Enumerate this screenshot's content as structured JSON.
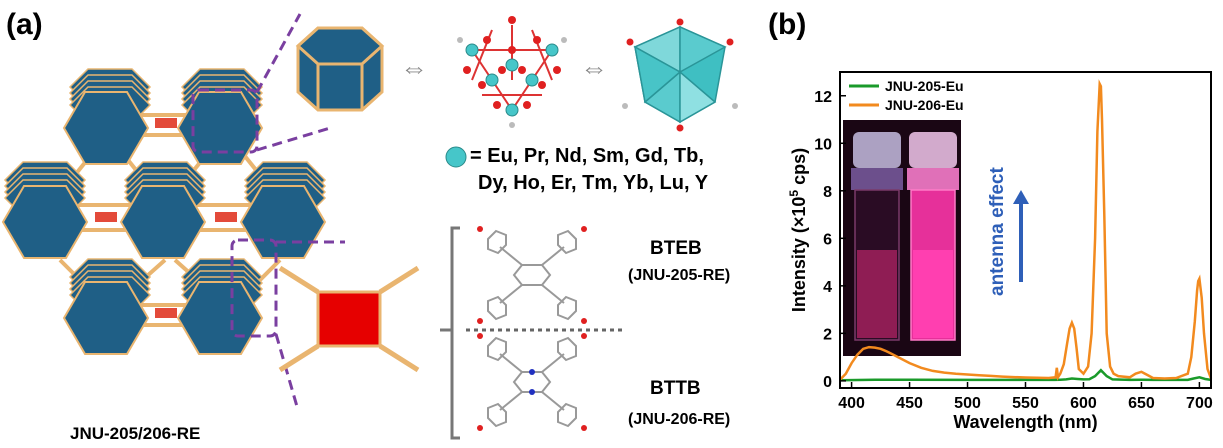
{
  "panel_a": {
    "label": "(a)",
    "framework_caption": "JNU-205/206-RE",
    "exchange_arrow": "⇔",
    "ion_legend_line1": "= Eu, Pr, Nd, Sm, Gd, Tb,",
    "ion_legend_line2": "Dy, Ho,  Er, Tm, Yb, Lu, Y",
    "linkers": [
      {
        "name": "BTEB",
        "material": "(JNU-205-RE)"
      },
      {
        "name": "BTTB",
        "material": "(JNU-206-RE)"
      }
    ],
    "colors": {
      "hexagon": "#1f5f86",
      "strut": "#e9b570",
      "square": "#e60000",
      "ion": "#46c6c9",
      "dashed": "#7a3fa0"
    }
  },
  "panel_b": {
    "label": "(b)",
    "annotation": "antenna effect"
  },
  "chart_data": {
    "type": "line",
    "xlabel": "Wavelength (nm)",
    "ylabel_main": "Intensity (×10",
    "ylabel_sup": "5",
    "ylabel_tail": " cps)",
    "xlim": [
      390,
      710
    ],
    "ylim": [
      -0.3,
      13
    ],
    "xticks": [
      400,
      450,
      500,
      550,
      600,
      650,
      700
    ],
    "yticks": [
      0,
      2,
      4,
      6,
      8,
      10,
      12
    ],
    "legend_placement": "top-left",
    "series": [
      {
        "name": "JNU-205-Eu",
        "color": "#1a9a2a",
        "x": [
          390,
          420,
          450,
          500,
          550,
          575,
          580,
          585,
          590,
          595,
          600,
          605,
          610,
          615,
          620,
          625,
          640,
          650,
          660,
          690,
          695,
          700,
          705,
          710
        ],
        "y": [
          0.03,
          0.05,
          0.05,
          0.04,
          0.04,
          0.04,
          0.05,
          0.06,
          0.1,
          0.08,
          0.06,
          0.07,
          0.2,
          0.45,
          0.2,
          0.06,
          0.04,
          0.05,
          0.04,
          0.04,
          0.1,
          0.15,
          0.08,
          0.04
        ]
      },
      {
        "name": "JNU-206-Eu",
        "color": "#f28a1e",
        "x": [
          390,
          395,
          400,
          405,
          410,
          415,
          420,
          425,
          430,
          440,
          450,
          460,
          470,
          480,
          490,
          500,
          510,
          520,
          530,
          540,
          550,
          560,
          570,
          576,
          577,
          578,
          580,
          583,
          586,
          588,
          590,
          592,
          594,
          596,
          600,
          604,
          607,
          610,
          612,
          614,
          615,
          616,
          618,
          620,
          623,
          626,
          630,
          640,
          645,
          650,
          655,
          660,
          670,
          680,
          690,
          693,
          696,
          698,
          699,
          700,
          702,
          704,
          707,
          710
        ],
        "y": [
          0.05,
          0.3,
          0.75,
          1.1,
          1.35,
          1.42,
          1.4,
          1.35,
          1.25,
          1.0,
          0.75,
          0.55,
          0.42,
          0.35,
          0.3,
          0.27,
          0.24,
          0.21,
          0.18,
          0.16,
          0.14,
          0.13,
          0.12,
          0.15,
          0.55,
          0.15,
          0.3,
          0.7,
          1.6,
          2.2,
          2.45,
          2.2,
          1.4,
          0.5,
          0.3,
          0.6,
          2.0,
          6.0,
          10.5,
          12.5,
          12.4,
          11.0,
          7.0,
          2.0,
          0.6,
          0.3,
          0.2,
          0.15,
          0.3,
          0.38,
          0.25,
          0.12,
          0.1,
          0.12,
          0.3,
          1.0,
          2.5,
          3.8,
          4.2,
          4.3,
          3.5,
          2.0,
          0.5,
          0.1
        ]
      }
    ]
  }
}
